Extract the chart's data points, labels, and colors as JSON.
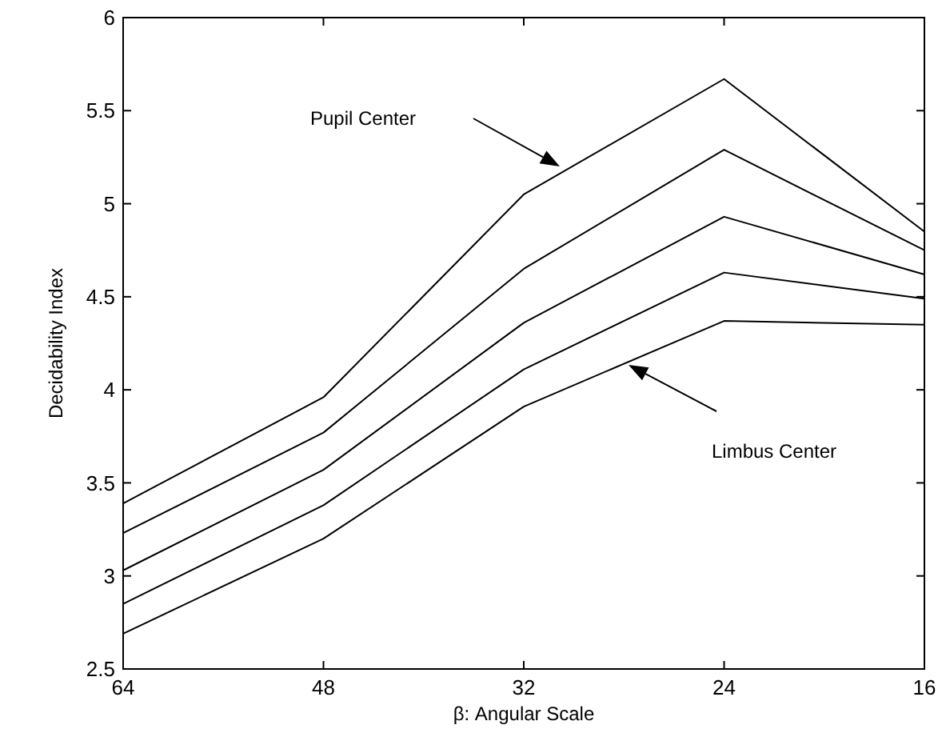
{
  "chart_data": {
    "type": "line",
    "xlabel": "β: Angular Scale",
    "ylabel": "Decidability Index",
    "categories": [
      "64",
      "48",
      "32",
      "24",
      "16"
    ],
    "series": [
      {
        "color": "#000000",
        "values": [
          3.39,
          3.96,
          5.05,
          5.67,
          4.85
        ]
      },
      {
        "color": "#000000",
        "values": [
          3.23,
          3.77,
          4.65,
          5.29,
          4.75
        ]
      },
      {
        "color": "#000000",
        "values": [
          3.03,
          3.57,
          4.36,
          4.93,
          4.62
        ]
      },
      {
        "color": "#000000",
        "values": [
          2.85,
          3.38,
          4.11,
          4.63,
          4.49
        ]
      },
      {
        "color": "#000000",
        "values": [
          2.69,
          3.2,
          3.91,
          4.37,
          4.35
        ]
      }
    ],
    "ylim": [
      2.5,
      6
    ],
    "yticks": [
      2.5,
      3,
      3.5,
      4,
      4.5,
      5,
      5.5,
      6
    ],
    "annotations": [
      "Pupil Center",
      "Limbus Center"
    ],
    "grid": false,
    "marker": "none",
    "line_style": "solid"
  }
}
